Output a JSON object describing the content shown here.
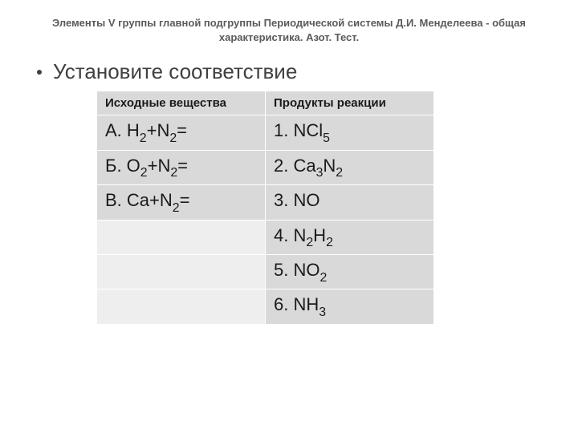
{
  "title": "Элементы V группы главной подгруппы Периодической системы Д.И. Менделеева - общая характеристика. Азот. Тест.",
  "bullet": "Установите соответствие",
  "table": {
    "headers": {
      "left": "Исходные вещества",
      "right": "Продукты реакции"
    },
    "rows": [
      {
        "leftLabel": "А. ",
        "leftMain1": "H",
        "leftSub1": "2",
        "leftPlus": "+N",
        "leftSub2": "2",
        "leftEq": "=",
        "rightLabel": "1. NCl",
        "rightSub": "5",
        "rightTail": ""
      },
      {
        "leftLabel": "Б. ",
        "leftMain1": "O",
        "leftSub1": "2",
        "leftPlus": "+N",
        "leftSub2": "2",
        "leftEq": "=",
        "rightLabel": "2. Ca",
        "rightSub": "3",
        "rightTail": "N",
        "rightSub2": "2"
      },
      {
        "leftLabel": "В. ",
        "leftMain1": "Ca+N",
        "leftSub1": "2",
        "leftPlus": "",
        "leftSub2": "",
        "leftEq": "=",
        "rightLabel": "3. NO",
        "rightSub": "",
        "rightTail": ""
      },
      {
        "blankLeft": true,
        "rightLabel": "4. N",
        "rightSub": "2",
        "rightTail": "H",
        "rightSub2": "2"
      },
      {
        "blankLeft": true,
        "rightLabel": "5. NO",
        "rightSub": "2",
        "rightTail": ""
      },
      {
        "blankLeft": true,
        "rightLabel": "6. NH",
        "rightSub": "3",
        "rightTail": ""
      }
    ]
  },
  "colors": {
    "title": "#5a5a5a",
    "text": "#404040",
    "cellBg": "#d9d9d9",
    "blankBg": "#eeeeee",
    "border": "#ffffff",
    "pageBg": "#ffffff"
  },
  "typography": {
    "titleSize": 13,
    "bulletSize": 26,
    "headerSize": 15,
    "cellSize": 22
  }
}
